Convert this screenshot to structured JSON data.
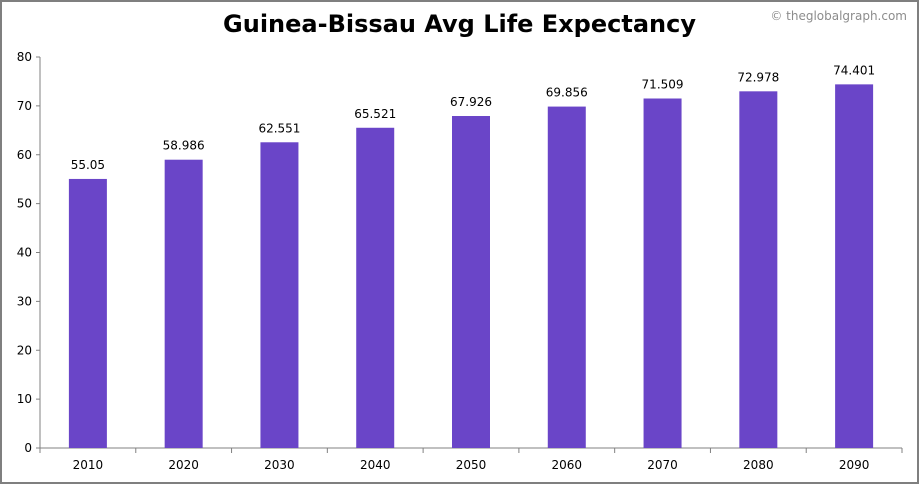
{
  "credit": "© theglobalgraph.com",
  "chart_data": {
    "type": "bar",
    "title": "Guinea-Bissau Avg Life Expectancy",
    "xlabel": "",
    "ylabel": "",
    "categories": [
      "2010",
      "2020",
      "2030",
      "2040",
      "2050",
      "2060",
      "2070",
      "2080",
      "2090"
    ],
    "values": [
      55.05,
      58.986,
      62.551,
      65.521,
      67.926,
      69.856,
      71.509,
      72.978,
      74.401
    ],
    "data_labels": [
      "55.05",
      "58.986",
      "62.551",
      "65.521",
      "67.926",
      "69.856",
      "71.509",
      "72.978",
      "74.401"
    ],
    "ylim": [
      0,
      80
    ],
    "yticks": [
      0,
      10,
      20,
      30,
      40,
      50,
      60,
      70,
      80
    ],
    "grid": false,
    "legend": "none",
    "bar_color": "#6a45c8",
    "axis_color": "#808080"
  }
}
